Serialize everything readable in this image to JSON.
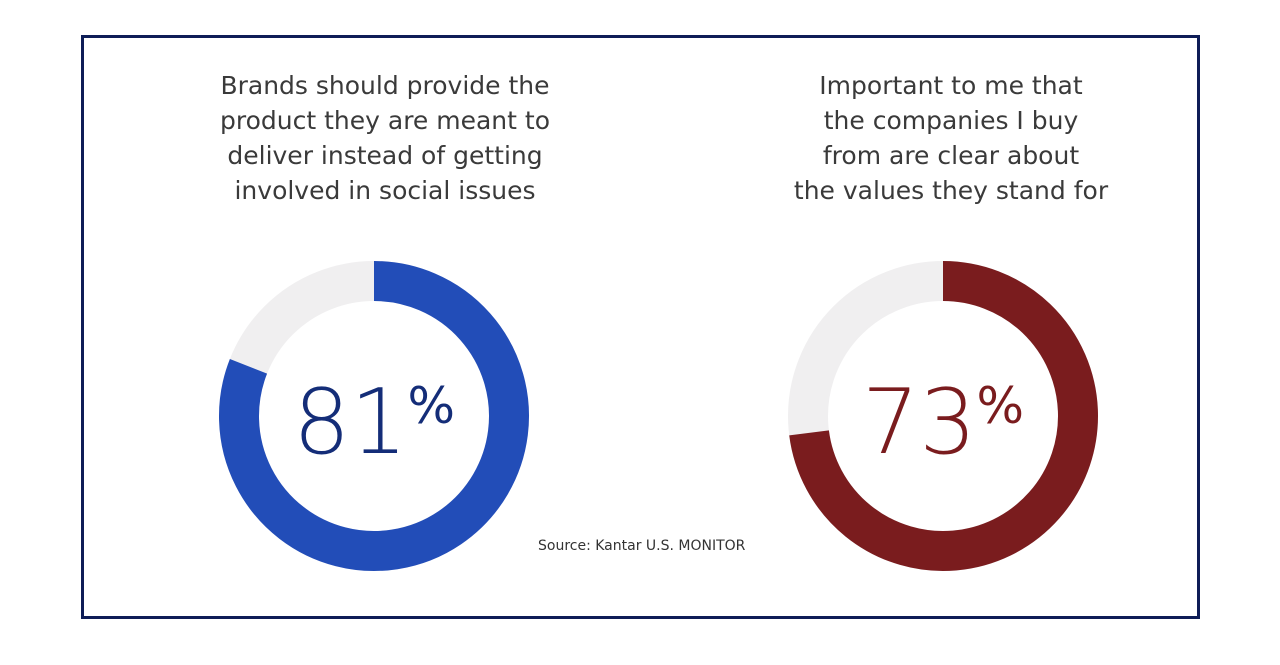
{
  "chart_data": [
    {
      "type": "pie",
      "title": "Brands should provide the\nproduct they are meant to\ndeliver instead of getting\ninvolved in social issues",
      "value": 81,
      "label": "81%",
      "color": "#224db8",
      "text_color": "#142d78",
      "remainder_color": "#f0eff0"
    },
    {
      "type": "pie",
      "title": "Important to me that\nthe companies I buy\nfrom are clear about\nthe values they stand for",
      "value": 73,
      "label": "73%",
      "color": "#7a1c1e",
      "text_color": "#7a1c1e",
      "remainder_color": "#f0eff0"
    }
  ],
  "source": "Source: Kantar U.S. MONITOR",
  "frame_color": "#0e1d57"
}
